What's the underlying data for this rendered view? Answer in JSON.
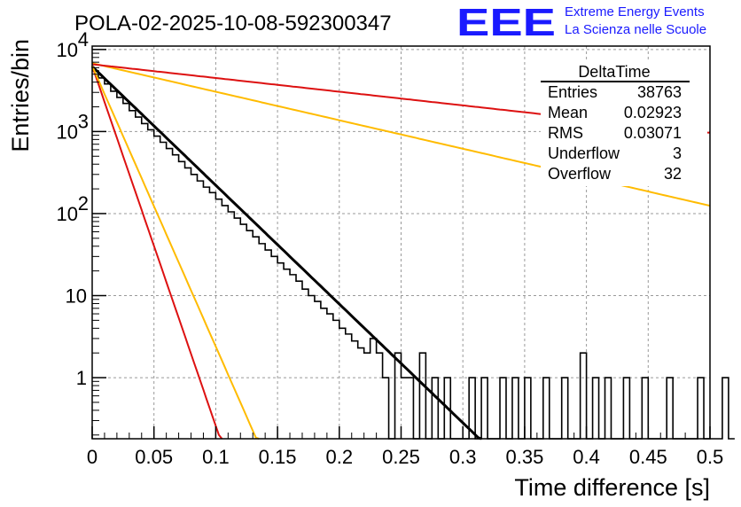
{
  "chart_data": {
    "type": "histogram",
    "title": "POLA-02-2025-10-08-592300347",
    "xlabel": "Time difference [s]",
    "ylabel": "Entries/bin",
    "xlim": [
      0,
      0.5
    ],
    "ylim_log": [
      0.18,
      11000
    ],
    "yscale": "log",
    "grid": true,
    "x_ticks": [
      "0",
      "0.05",
      "0.1",
      "0.15",
      "0.2",
      "0.25",
      "0.3",
      "0.35",
      "0.4",
      "0.45",
      "0.5"
    ],
    "y_ticks": [
      {
        "value": 1,
        "label": "1"
      },
      {
        "value": 10,
        "label": "10"
      },
      {
        "value": 100,
        "label": "10",
        "exp": "2"
      },
      {
        "value": 1000,
        "label": "10",
        "exp": "3"
      },
      {
        "value": 10000,
        "label": "10",
        "exp": "4"
      }
    ],
    "bin_width": 0.005,
    "counts": [
      5500,
      4500,
      3800,
      3100,
      2600,
      2200,
      1800,
      1500,
      1250,
      1050,
      880,
      740,
      620,
      520,
      430,
      360,
      300,
      250,
      210,
      180,
      150,
      125,
      105,
      88,
      74,
      62,
      52,
      43,
      36,
      30,
      25,
      21,
      18,
      15,
      12,
      10,
      8.5,
      7,
      6,
      5,
      4,
      3.4,
      2.8,
      2.3,
      2,
      3,
      2,
      1,
      0,
      2,
      1,
      1,
      0,
      2,
      0,
      1,
      0,
      1,
      0,
      0,
      0,
      1,
      0,
      1,
      0,
      0,
      1,
      0,
      1,
      0,
      1,
      0,
      0,
      1,
      0,
      0,
      1,
      0,
      0,
      2,
      0,
      1,
      0,
      1,
      0,
      0,
      1,
      0,
      0,
      1,
      0,
      0,
      0,
      1,
      0,
      0,
      0,
      0,
      1,
      0,
      0,
      0,
      1,
      0
    ],
    "series": [
      {
        "name": "fit-black",
        "color": "#000000",
        "y0": 6200,
        "slope": 0.03
      },
      {
        "name": "fit-red-steep",
        "color": "#dd1111",
        "y0": 6300,
        "slope": 0.0099
      },
      {
        "name": "fit-orange-steep",
        "color": "#ffbb00",
        "y0": 6300,
        "slope": 0.0127
      },
      {
        "name": "fit-orange-shallow",
        "color": "#ffbb00",
        "y0": 6800,
        "slope": 0.125
      },
      {
        "name": "fit-red-shallow",
        "color": "#dd1111",
        "y0": 6600,
        "slope": 0.26
      }
    ]
  },
  "stats": {
    "title": "DeltaTime",
    "rows": [
      {
        "label": "Entries",
        "value": "38763"
      },
      {
        "label": "Mean",
        "value": "0.02923"
      },
      {
        "label": "RMS",
        "value": "0.03071"
      },
      {
        "label": "Underflow",
        "value": "3"
      },
      {
        "label": "Overflow",
        "value": "32"
      }
    ]
  },
  "logo": {
    "mark": "EEE",
    "line1": "Extreme Energy Events",
    "line2": "La Scienza nelle Scuole",
    "color": "#1a1aff"
  }
}
